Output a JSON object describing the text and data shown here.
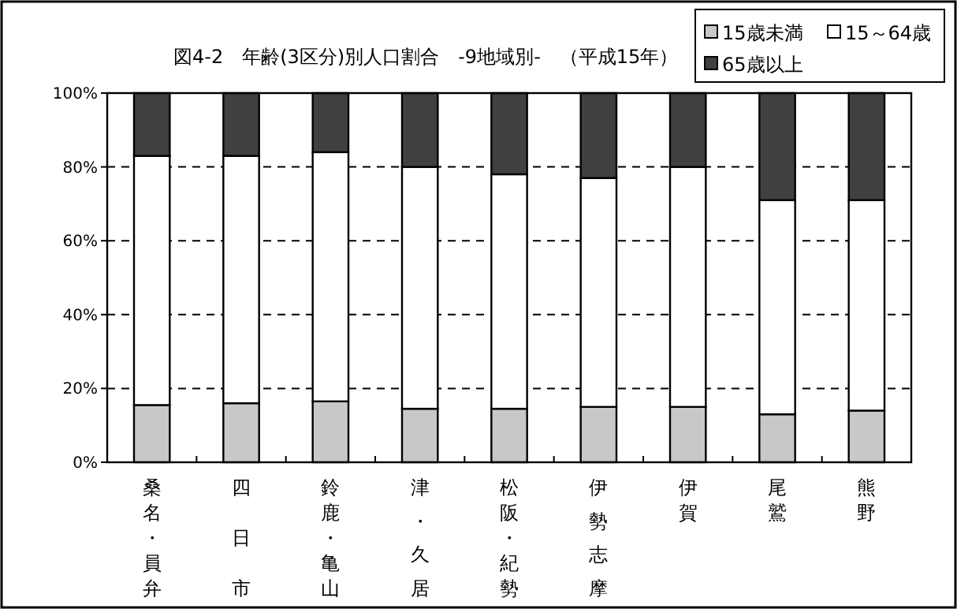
{
  "chart_data": {
    "type": "bar",
    "stacked": true,
    "title": "図4-2　年齢(3区分)別人口割合　-9地域別-　（平成15年）",
    "categories": [
      "桑名・員弁",
      "四日市",
      "鈴鹿・亀山",
      "津・久居",
      "松阪・紀勢",
      "伊勢志摩",
      "伊賀",
      "尾鷲",
      "熊野"
    ],
    "series": [
      {
        "name": "15歳未満",
        "color": "#c8c8c8",
        "values": [
          15.5,
          16,
          16.5,
          14.5,
          14.5,
          15,
          15,
          13,
          14
        ]
      },
      {
        "name": "15～64歳",
        "color": "#ffffff",
        "values": [
          67.5,
          67,
          67.5,
          65.5,
          63.5,
          62,
          65,
          58,
          57
        ]
      },
      {
        "name": "65歳以上",
        "color": "#404040",
        "values": [
          17,
          17,
          16,
          20,
          22,
          23,
          20,
          29,
          29
        ]
      }
    ],
    "ylim": [
      0,
      100
    ],
    "yticks": [
      {
        "value": 0,
        "label": "0%"
      },
      {
        "value": 20,
        "label": "20%"
      },
      {
        "value": 40,
        "label": "40%"
      },
      {
        "value": 60,
        "label": "60%"
      },
      {
        "value": 80,
        "label": "80%"
      },
      {
        "value": 100,
        "label": "100%"
      }
    ],
    "grid": "y",
    "legend": "top right"
  }
}
